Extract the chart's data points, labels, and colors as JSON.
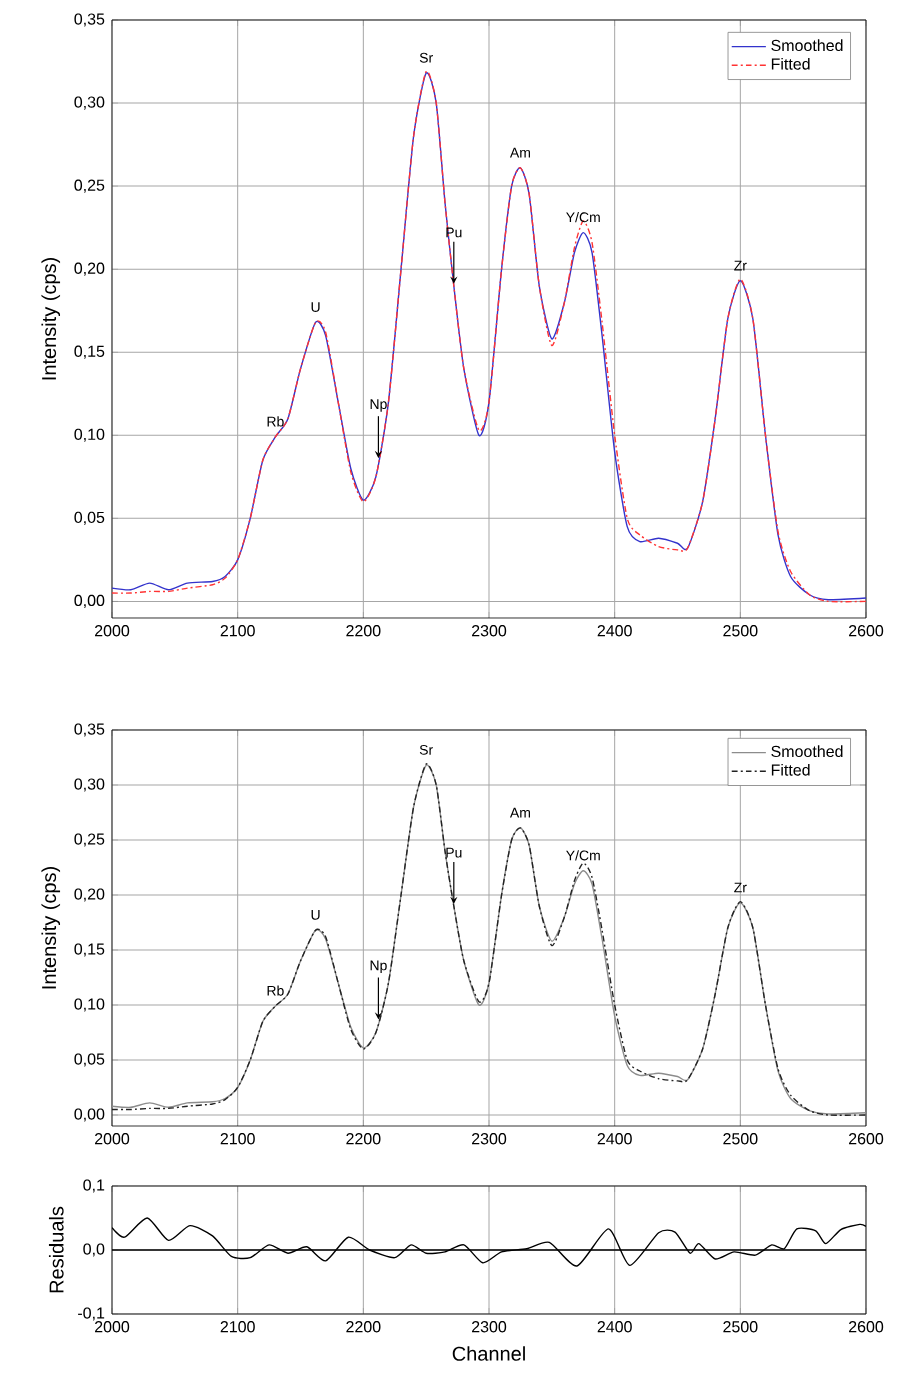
{
  "chart_data": [
    {
      "type": "line",
      "ylabel": "Intensity (cps)",
      "x": [
        2000,
        2015,
        2030,
        2045,
        2060,
        2080,
        2090,
        2100,
        2110,
        2120,
        2130,
        2140,
        2150,
        2162,
        2170,
        2180,
        2190,
        2200,
        2210,
        2220,
        2230,
        2240,
        2250,
        2258,
        2265,
        2272,
        2280,
        2292,
        2300,
        2310,
        2318,
        2325,
        2332,
        2340,
        2350,
        2360,
        2368,
        2375,
        2382,
        2390,
        2400,
        2410,
        2420,
        2435,
        2450,
        2458,
        2470,
        2480,
        2490,
        2500,
        2510,
        2520,
        2530,
        2540,
        2555,
        2570,
        2600
      ],
      "series": [
        {
          "name": "Smoothed",
          "color": "#3333cc",
          "line_style": "solid",
          "values": [
            0.008,
            0.007,
            0.011,
            0.007,
            0.011,
            0.012,
            0.015,
            0.025,
            0.05,
            0.085,
            0.099,
            0.11,
            0.14,
            0.168,
            0.16,
            0.12,
            0.08,
            0.061,
            0.075,
            0.12,
            0.2,
            0.28,
            0.318,
            0.3,
            0.24,
            0.19,
            0.14,
            0.1,
            0.12,
            0.2,
            0.25,
            0.261,
            0.245,
            0.19,
            0.158,
            0.18,
            0.21,
            0.222,
            0.21,
            0.16,
            0.09,
            0.045,
            0.036,
            0.038,
            0.035,
            0.032,
            0.06,
            0.11,
            0.17,
            0.193,
            0.17,
            0.1,
            0.04,
            0.015,
            0.004,
            0.001,
            0.002
          ]
        },
        {
          "name": "Fitted",
          "color": "#ff3333",
          "line_style": "dashed",
          "values": [
            0.005,
            0.005,
            0.006,
            0.006,
            0.008,
            0.01,
            0.014,
            0.025,
            0.05,
            0.085,
            0.099,
            0.11,
            0.14,
            0.168,
            0.162,
            0.12,
            0.078,
            0.06,
            0.075,
            0.12,
            0.2,
            0.28,
            0.319,
            0.3,
            0.24,
            0.19,
            0.14,
            0.103,
            0.12,
            0.2,
            0.25,
            0.261,
            0.245,
            0.19,
            0.154,
            0.18,
            0.213,
            0.229,
            0.216,
            0.168,
            0.1,
            0.05,
            0.04,
            0.033,
            0.031,
            0.032,
            0.06,
            0.11,
            0.17,
            0.194,
            0.17,
            0.1,
            0.042,
            0.018,
            0.004,
            0.0,
            0.0
          ]
        }
      ],
      "xlim": [
        2000,
        2600
      ],
      "xticks": [
        2000,
        2100,
        2200,
        2300,
        2400,
        2500,
        2600
      ],
      "ylim": [
        -0.01,
        0.35
      ],
      "yticks": [
        {
          "value": 0,
          "label": "0,00"
        },
        {
          "value": 0.05,
          "label": "0,05"
        },
        {
          "value": 0.1,
          "label": "0,10"
        },
        {
          "value": 0.15,
          "label": "0,15"
        },
        {
          "value": 0.2,
          "label": "0,20"
        },
        {
          "value": 0.25,
          "label": "0,25"
        },
        {
          "value": 0.3,
          "label": "0,30"
        },
        {
          "value": 0.35,
          "label": "0,35"
        }
      ],
      "annotations": [
        {
          "text": "Rb",
          "x": 2130,
          "y": 0.099
        },
        {
          "text": "U",
          "x": 2162,
          "y": 0.168
        },
        {
          "text": "Np",
          "x": 2212,
          "y": 0.085
        },
        {
          "text": "Sr",
          "x": 2250,
          "y": 0.318
        },
        {
          "text": "Pu",
          "x": 2272,
          "y": 0.19
        },
        {
          "text": "Am",
          "x": 2325,
          "y": 0.261
        },
        {
          "text": "Y/Cm",
          "x": 2375,
          "y": 0.222
        },
        {
          "text": "Zr",
          "x": 2500,
          "y": 0.193
        }
      ],
      "grid": true,
      "legend": "top right",
      "marker": "none"
    },
    {
      "type": "line",
      "ylabel": "Intensity (cps)",
      "x": [
        2000,
        2015,
        2030,
        2045,
        2060,
        2080,
        2090,
        2100,
        2110,
        2120,
        2130,
        2140,
        2150,
        2162,
        2170,
        2180,
        2190,
        2200,
        2210,
        2220,
        2230,
        2240,
        2250,
        2258,
        2265,
        2272,
        2280,
        2292,
        2300,
        2310,
        2318,
        2325,
        2332,
        2340,
        2350,
        2360,
        2368,
        2375,
        2382,
        2390,
        2400,
        2410,
        2420,
        2435,
        2450,
        2458,
        2470,
        2480,
        2490,
        2500,
        2510,
        2520,
        2530,
        2540,
        2555,
        2570,
        2600
      ],
      "series": [
        {
          "name": "Smoothed",
          "color": "#8c8c8c",
          "line_style": "solid",
          "values": [
            0.008,
            0.007,
            0.011,
            0.007,
            0.011,
            0.012,
            0.015,
            0.025,
            0.05,
            0.085,
            0.099,
            0.11,
            0.14,
            0.168,
            0.16,
            0.12,
            0.08,
            0.061,
            0.075,
            0.12,
            0.2,
            0.28,
            0.318,
            0.3,
            0.24,
            0.19,
            0.14,
            0.1,
            0.12,
            0.2,
            0.25,
            0.261,
            0.245,
            0.19,
            0.158,
            0.18,
            0.21,
            0.222,
            0.21,
            0.16,
            0.09,
            0.045,
            0.036,
            0.038,
            0.035,
            0.032,
            0.06,
            0.11,
            0.17,
            0.193,
            0.17,
            0.1,
            0.04,
            0.015,
            0.004,
            0.001,
            0.002
          ]
        },
        {
          "name": "Fitted",
          "color": "#222222",
          "line_style": "dashed",
          "values": [
            0.005,
            0.005,
            0.006,
            0.006,
            0.008,
            0.01,
            0.014,
            0.025,
            0.05,
            0.085,
            0.099,
            0.11,
            0.14,
            0.168,
            0.162,
            0.12,
            0.078,
            0.06,
            0.075,
            0.12,
            0.2,
            0.28,
            0.319,
            0.3,
            0.24,
            0.19,
            0.14,
            0.103,
            0.12,
            0.2,
            0.25,
            0.261,
            0.245,
            0.19,
            0.154,
            0.18,
            0.213,
            0.229,
            0.216,
            0.168,
            0.1,
            0.05,
            0.04,
            0.033,
            0.031,
            0.032,
            0.06,
            0.11,
            0.17,
            0.194,
            0.17,
            0.1,
            0.042,
            0.018,
            0.004,
            0.0,
            0.0
          ]
        }
      ],
      "xlim": [
        2000,
        2600
      ],
      "xticks": [
        2000,
        2100,
        2200,
        2300,
        2400,
        2500,
        2600
      ],
      "ylim": [
        -0.01,
        0.35
      ],
      "yticks": [
        {
          "value": 0,
          "label": "0,00"
        },
        {
          "value": 0.05,
          "label": "0,05"
        },
        {
          "value": 0.1,
          "label": "0,10"
        },
        {
          "value": 0.15,
          "label": "0,15"
        },
        {
          "value": 0.2,
          "label": "0,20"
        },
        {
          "value": 0.25,
          "label": "0,25"
        },
        {
          "value": 0.3,
          "label": "0,30"
        },
        {
          "value": 0.35,
          "label": "0,35"
        }
      ],
      "annotations": [
        {
          "text": "Rb",
          "x": 2130,
          "y": 0.099
        },
        {
          "text": "U",
          "x": 2162,
          "y": 0.168
        },
        {
          "text": "Np",
          "x": 2212,
          "y": 0.085
        },
        {
          "text": "Sr",
          "x": 2250,
          "y": 0.318
        },
        {
          "text": "Pu",
          "x": 2272,
          "y": 0.19
        },
        {
          "text": "Am",
          "x": 2325,
          "y": 0.261
        },
        {
          "text": "Y/Cm",
          "x": 2375,
          "y": 0.222
        },
        {
          "text": "Zr",
          "x": 2500,
          "y": 0.193
        }
      ],
      "grid": true,
      "legend": "top right",
      "marker": "none"
    },
    {
      "type": "line",
      "xlabel": "Channel",
      "ylabel": "Residuals",
      "x": [
        2000,
        2010,
        2028,
        2045,
        2062,
        2080,
        2095,
        2110,
        2125,
        2140,
        2155,
        2170,
        2188,
        2205,
        2225,
        2238,
        2250,
        2265,
        2280,
        2295,
        2310,
        2330,
        2348,
        2370,
        2395,
        2412,
        2435,
        2448,
        2460,
        2467,
        2480,
        2495,
        2512,
        2525,
        2535,
        2545,
        2560,
        2568,
        2580,
        2595,
        2600
      ],
      "series": [
        {
          "color": "#000000",
          "line_style": "solid",
          "values": [
            0.035,
            0.02,
            0.05,
            0.015,
            0.038,
            0.022,
            -0.01,
            -0.012,
            0.008,
            -0.005,
            0.005,
            -0.017,
            0.02,
            0.0,
            -0.012,
            0.008,
            -0.005,
            -0.003,
            0.008,
            -0.02,
            -0.003,
            0.002,
            0.012,
            -0.025,
            0.033,
            -0.024,
            0.027,
            0.028,
            -0.005,
            0.01,
            -0.014,
            -0.003,
            -0.008,
            0.008,
            0.002,
            0.033,
            0.03,
            0.01,
            0.032,
            0.04,
            0.037
          ]
        }
      ],
      "xlim": [
        2000,
        2600
      ],
      "xticks": [
        2000,
        2100,
        2200,
        2300,
        2400,
        2500,
        2600
      ],
      "ylim": [
        -0.1,
        0.1
      ],
      "yticks": [
        {
          "value": -0.1,
          "label": "-0,1"
        },
        {
          "value": 0,
          "label": "0,0"
        },
        {
          "value": 0.1,
          "label": "0,1"
        }
      ],
      "ref_lines": [
        {
          "axis": "y",
          "value": 0,
          "color": "#000000"
        }
      ],
      "grid": true,
      "legend": false,
      "marker": "none"
    }
  ]
}
